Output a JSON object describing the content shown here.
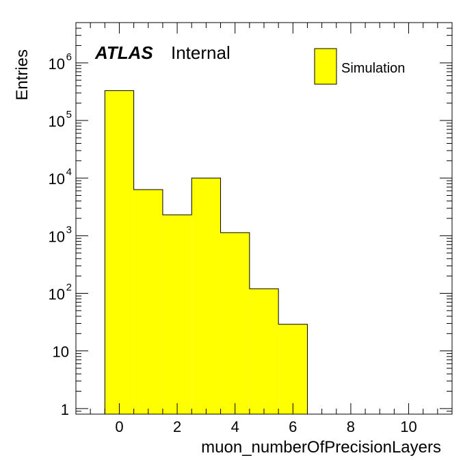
{
  "chart_data": {
    "type": "bar",
    "histogram": true,
    "title": "",
    "xlabel": "muon_numberOfPrecisionLayers",
    "ylabel": "Entries",
    "xlim": [
      -1.5,
      11.5
    ],
    "ylim": [
      0.8,
      5000000
    ],
    "yscale": "log",
    "grid": false,
    "bins": [
      {
        "low": -0.5,
        "high": 0.5,
        "value": 330000
      },
      {
        "low": 0.5,
        "high": 1.5,
        "value": 6300
      },
      {
        "low": 1.5,
        "high": 2.5,
        "value": 2300
      },
      {
        "low": 2.5,
        "high": 3.5,
        "value": 10000
      },
      {
        "low": 3.5,
        "high": 4.5,
        "value": 1130
      },
      {
        "low": 4.5,
        "high": 5.5,
        "value": 120
      },
      {
        "low": 5.5,
        "high": 6.5,
        "value": 29
      }
    ],
    "x_ticks": [
      0,
      2,
      4,
      6,
      8,
      10
    ],
    "x_tick_labels": [
      "0",
      "2",
      "4",
      "6",
      "8",
      "10"
    ],
    "y_ticks": [
      {
        "value": 1,
        "base": "1",
        "exp": ""
      },
      {
        "value": 10,
        "base": "10",
        "exp": ""
      },
      {
        "value": 100,
        "base": "10",
        "exp": "2"
      },
      {
        "value": 1000,
        "base": "10",
        "exp": "3"
      },
      {
        "value": 10000,
        "base": "10",
        "exp": "4"
      },
      {
        "value": 100000,
        "base": "10",
        "exp": "5"
      },
      {
        "value": 1000000,
        "base": "10",
        "exp": "6"
      }
    ],
    "legend": {
      "position": "top-right",
      "entries": [
        {
          "name": "Simulation",
          "color": "#ffff00"
        }
      ]
    },
    "annotation": {
      "atlas": "ATLAS",
      "status": "Internal"
    },
    "colors": {
      "fill": "#ffff00",
      "edge": "#000000"
    }
  }
}
